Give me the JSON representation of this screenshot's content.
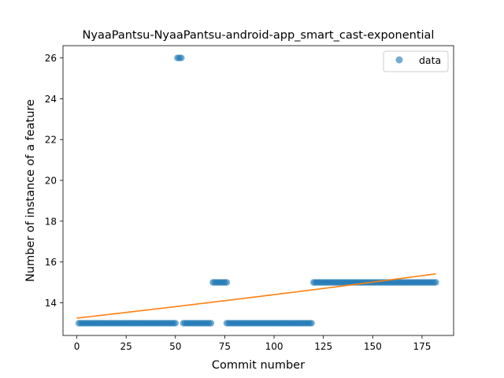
{
  "chart_data": {
    "type": "scatter",
    "title": "NyaaPantsu-NyaaPantsu-android-app_smart_cast-exponential",
    "xlabel": "Commit number",
    "ylabel": "Number of instance of a feature",
    "xlim": [
      -7,
      191
    ],
    "ylim": [
      12.4,
      26.6
    ],
    "xticks": [
      0,
      25,
      50,
      75,
      100,
      125,
      150,
      175
    ],
    "yticks": [
      14,
      16,
      18,
      20,
      22,
      24,
      26
    ],
    "grid": false,
    "legend": {
      "placement": "top-right",
      "entries": [
        "data"
      ]
    },
    "colors": {
      "points": "#1f77b4",
      "fit": "#ff7f0e"
    },
    "series": [
      {
        "name": "data",
        "kind": "scatter",
        "segments": [
          {
            "x_start": 1,
            "x_end": 50,
            "y": 13
          },
          {
            "x_start": 51,
            "x_end": 53,
            "y": 26
          },
          {
            "x_start": 54,
            "x_end": 68,
            "y": 13
          },
          {
            "x_start": 69,
            "x_end": 76,
            "y": 15
          },
          {
            "x_start": 76,
            "x_end": 119,
            "y": 13
          },
          {
            "x_start": 120,
            "x_end": 182,
            "y": 15
          }
        ]
      },
      {
        "kind": "line",
        "fit": {
          "model": "exponential",
          "x_start": 0,
          "x_end": 182,
          "y_start": 13.25,
          "y_end": 15.42
        }
      }
    ]
  }
}
